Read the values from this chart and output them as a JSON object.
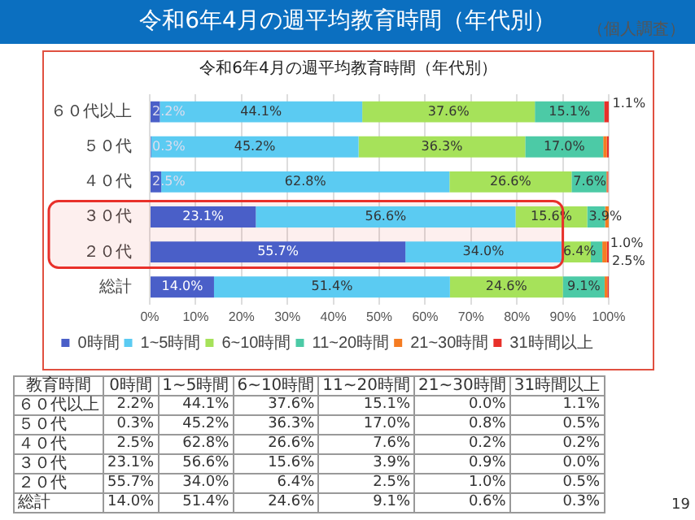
{
  "chart_data": [
    {
      "type": "bar",
      "orientation": "horizontal",
      "stacked": true,
      "title": "令和6年4月の週平均教育時間（年代別）",
      "subtitle": "（個人調査）",
      "annotations": [
        "令和6年4月の週平均教育時間（年代別）",
        "19"
      ],
      "categories": [
        "６０代以上",
        "５０代",
        "４０代",
        "３０代",
        "２０代",
        "総計"
      ],
      "series": [
        {
          "name": "0時間",
          "color": "#4a5fc8",
          "values": [
            2.2,
            0.3,
            2.5,
            23.1,
            55.7,
            14.0
          ],
          "value_labels": [
            "2.2%",
            "0.3%",
            "2.5%",
            "23.1%",
            "55.7%",
            "14.0%"
          ]
        },
        {
          "name": "1~5時間",
          "color": "#5bcbf2",
          "values": [
            44.1,
            45.2,
            62.8,
            56.6,
            34.0,
            51.4
          ],
          "value_labels": [
            "44.1%",
            "45.2%",
            "62.8%",
            "56.6%",
            "34.0%",
            "51.4%"
          ]
        },
        {
          "name": "6~10時間",
          "color": "#a6e25a",
          "values": [
            37.6,
            36.3,
            26.6,
            15.6,
            6.4,
            24.6
          ],
          "value_labels": [
            "37.6%",
            "36.3%",
            "26.6%",
            "15.6%",
            "6.4%",
            "24.6%"
          ]
        },
        {
          "name": "11~20時間",
          "color": "#4ccaa6",
          "values": [
            15.1,
            17.0,
            7.6,
            3.9,
            2.5,
            9.1
          ],
          "value_labels": [
            "15.1%",
            "17.0%",
            "7.6%",
            "3.9%",
            "2.5%",
            "9.1%"
          ]
        },
        {
          "name": "21~30時間",
          "color": "#f57c22",
          "values": [
            0.0,
            0.8,
            0.2,
            0.9,
            1.0,
            0.6
          ],
          "value_labels": [
            null,
            null,
            null,
            null,
            "1.0%",
            null
          ]
        },
        {
          "name": "31時間以上",
          "color": "#e8302a",
          "values": [
            1.1,
            0.5,
            0.2,
            0.0,
            0.5,
            0.3
          ],
          "value_labels": [
            "1.1%",
            null,
            null,
            null,
            null,
            null
          ]
        }
      ],
      "xlim": [
        0,
        100
      ],
      "xticks": [
        {
          "value": 0,
          "label": "0%"
        },
        {
          "value": 10,
          "label": "10%"
        },
        {
          "value": 20,
          "label": "20%"
        },
        {
          "value": 30,
          "label": "30%"
        },
        {
          "value": 40,
          "label": "40%"
        },
        {
          "value": 50,
          "label": "50%"
        },
        {
          "value": 60,
          "label": "60%"
        },
        {
          "value": 70,
          "label": "70%"
        },
        {
          "value": 80,
          "label": "80%"
        },
        {
          "value": 90,
          "label": "90%"
        },
        {
          "value": 100,
          "label": "100%"
        }
      ],
      "grid": "x",
      "legend": "bottom",
      "bands": [
        {
          "axis": "y",
          "from": "３０代",
          "to": "２０代",
          "color": "#e8302a"
        }
      ]
    },
    {
      "type": "heatmap",
      "ylabel": "教育時間",
      "categories": [
        "0時間",
        "1~5時間",
        "6~10時間",
        "11~20時間",
        "21~30時間",
        "31時間以上"
      ],
      "y_categories": [
        "６０代以上",
        "５０代",
        "４０代",
        "３０代",
        "２０代",
        "総計"
      ],
      "cells": [
        [
          2.2,
          44.1,
          37.6,
          15.1,
          0.0,
          1.1
        ],
        [
          0.3,
          45.2,
          36.3,
          17.0,
          0.8,
          0.5
        ],
        [
          2.5,
          62.8,
          26.6,
          7.6,
          0.2,
          0.2
        ],
        [
          23.1,
          56.6,
          15.6,
          3.9,
          0.9,
          0.0
        ],
        [
          55.7,
          34.0,
          6.4,
          2.5,
          1.0,
          0.5
        ],
        [
          14.0,
          51.4,
          24.6,
          9.1,
          0.6,
          0.3
        ]
      ],
      "cell_labels": [
        [
          "2.2%",
          "44.1%",
          "37.6%",
          "15.1%",
          "0.0%",
          "1.1%"
        ],
        [
          "0.3%",
          "45.2%",
          "36.3%",
          "17.0%",
          "0.8%",
          "0.5%"
        ],
        [
          "2.5%",
          "62.8%",
          "26.6%",
          "7.6%",
          "0.2%",
          "0.2%"
        ],
        [
          "23.1%",
          "56.6%",
          "15.6%",
          "3.9%",
          "0.9%",
          "0.0%"
        ],
        [
          "55.7%",
          "34.0%",
          "6.4%",
          "2.5%",
          "1.0%",
          "0.5%"
        ],
        [
          "14.0%",
          "51.4%",
          "24.6%",
          "9.1%",
          "0.6%",
          "0.3%"
        ]
      ]
    }
  ]
}
